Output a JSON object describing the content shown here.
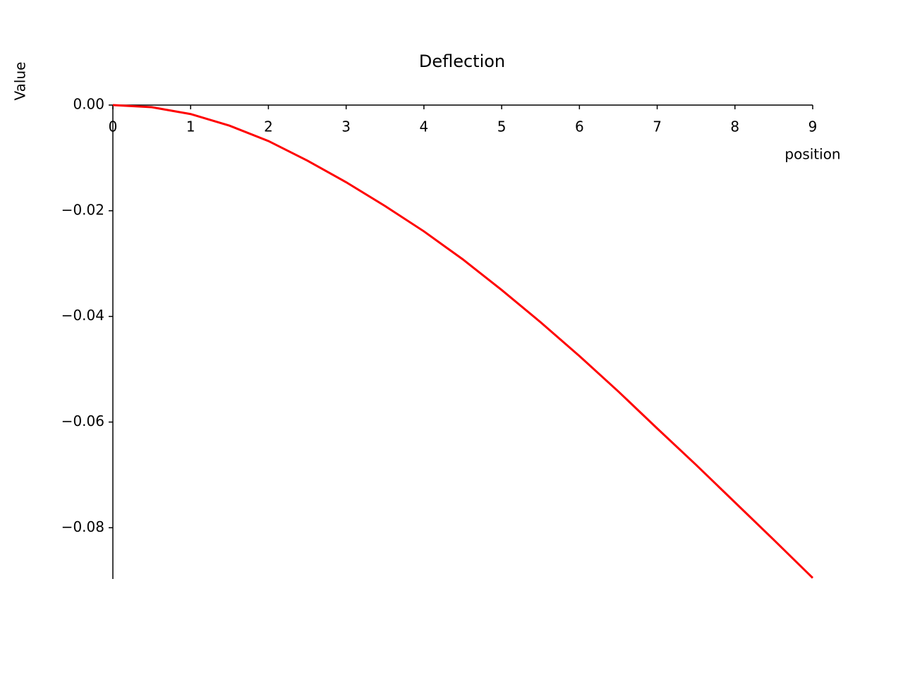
{
  "chart_data": {
    "type": "line",
    "title": "Deflection",
    "x_label": "position",
    "y_label": "Value",
    "x": [
      0,
      0.5,
      1,
      1.5,
      2,
      2.5,
      3,
      3.5,
      4,
      4.5,
      5,
      5.5,
      6,
      6.5,
      7,
      7.5,
      8,
      8.5,
      9
    ],
    "values": [
      0,
      -0.0004,
      -0.0017,
      -0.0039,
      -0.0068,
      -0.0105,
      -0.0146,
      -0.0191,
      -0.0239,
      -0.0292,
      -0.035,
      -0.0411,
      -0.0475,
      -0.0542,
      -0.0612,
      -0.0681,
      -0.0752,
      -0.0823,
      -0.0895
    ],
    "color": "#ff0000",
    "xlim": [
      0,
      9
    ],
    "ylim": [
      -0.0897,
      0
    ],
    "xticks": [
      0,
      1,
      2,
      3,
      4,
      5,
      6,
      7,
      8,
      9
    ],
    "yticks": [
      {
        "value": 0,
        "label": "0.00"
      },
      {
        "value": -0.02,
        "label": "−0.02"
      },
      {
        "value": -0.04,
        "label": "−0.04"
      },
      {
        "value": -0.06,
        "label": "−0.06"
      },
      {
        "value": -0.08,
        "label": "−0.08"
      }
    ]
  }
}
